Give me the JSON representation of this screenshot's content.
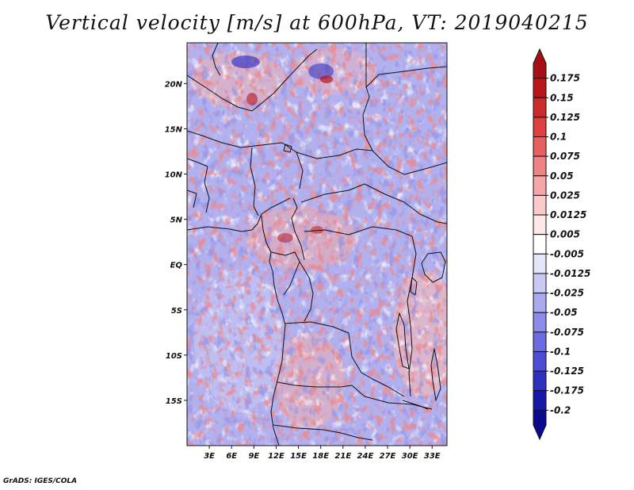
{
  "title": "Vertical velocity [m/s] at 600hPa, VT: 2019040215",
  "credit": "GrADS: IGES/COLA",
  "map": {
    "lat_labels": [
      "20N",
      "15N",
      "10N",
      "5N",
      "EQ",
      "5S",
      "10S",
      "15S"
    ],
    "lat_values": [
      20,
      15,
      10,
      5,
      0,
      -5,
      -10,
      -15
    ],
    "lon_labels": [
      "3E",
      "6E",
      "9E",
      "12E",
      "15E",
      "18E",
      "21E",
      "24E",
      "27E",
      "30E",
      "33E"
    ],
    "lon_values": [
      3,
      6,
      9,
      12,
      15,
      18,
      21,
      24,
      27,
      30,
      33
    ],
    "lat_range": [
      -20,
      24.5
    ],
    "lon_range": [
      0,
      35
    ]
  },
  "colorbar": {
    "labels": [
      "0.175",
      "0.15",
      "0.125",
      "0.1",
      "0.075",
      "0.05",
      "0.025",
      "0.0125",
      "0.005",
      "-0.005",
      "-0.0125",
      "-0.025",
      "-0.05",
      "-0.075",
      "-0.1",
      "-0.125",
      "-0.175",
      "-0.2"
    ],
    "colors": [
      "#a50f15",
      "#b8161b",
      "#cb2a2a",
      "#dc4040",
      "#e66060",
      "#ee8383",
      "#f5a6a6",
      "#fbcaca",
      "#fde7e7",
      "#ffffff",
      "#e6e6fb",
      "#c9c9f5",
      "#aaaaef",
      "#8c8ce8",
      "#6b6be0",
      "#4c4cd4",
      "#3030c0",
      "#1818a8",
      "#0a0a8c"
    ]
  }
}
